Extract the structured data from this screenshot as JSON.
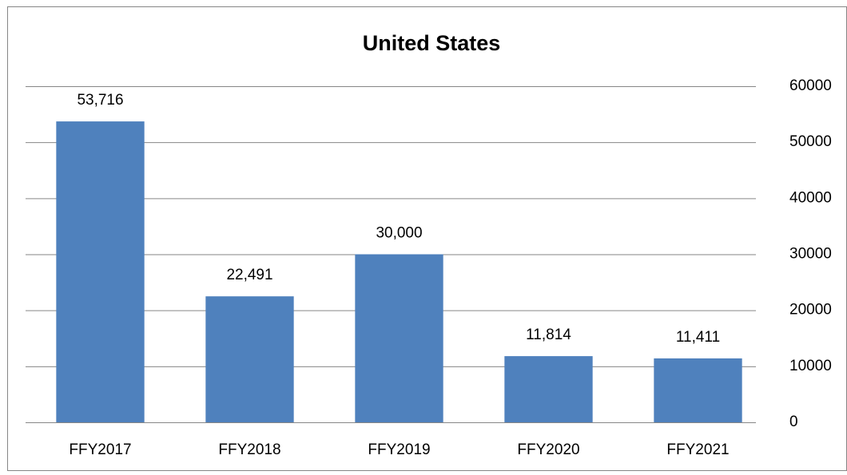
{
  "chart_data": {
    "type": "bar",
    "title": "United States",
    "categories": [
      "FFY2017",
      "FFY2018",
      "FFY2019",
      "FFY2020",
      "FFY2021"
    ],
    "values": [
      53716,
      22491,
      30000,
      11814,
      11411
    ],
    "value_labels": [
      "53,716",
      "22,491",
      "30,000",
      "11,814",
      "11,411"
    ],
    "color": "#4f81bd",
    "ylim": [
      0,
      60000
    ],
    "yticks": [
      0,
      10000,
      20000,
      30000,
      40000,
      50000,
      60000
    ],
    "y_axis_side": "right",
    "grid": true
  }
}
